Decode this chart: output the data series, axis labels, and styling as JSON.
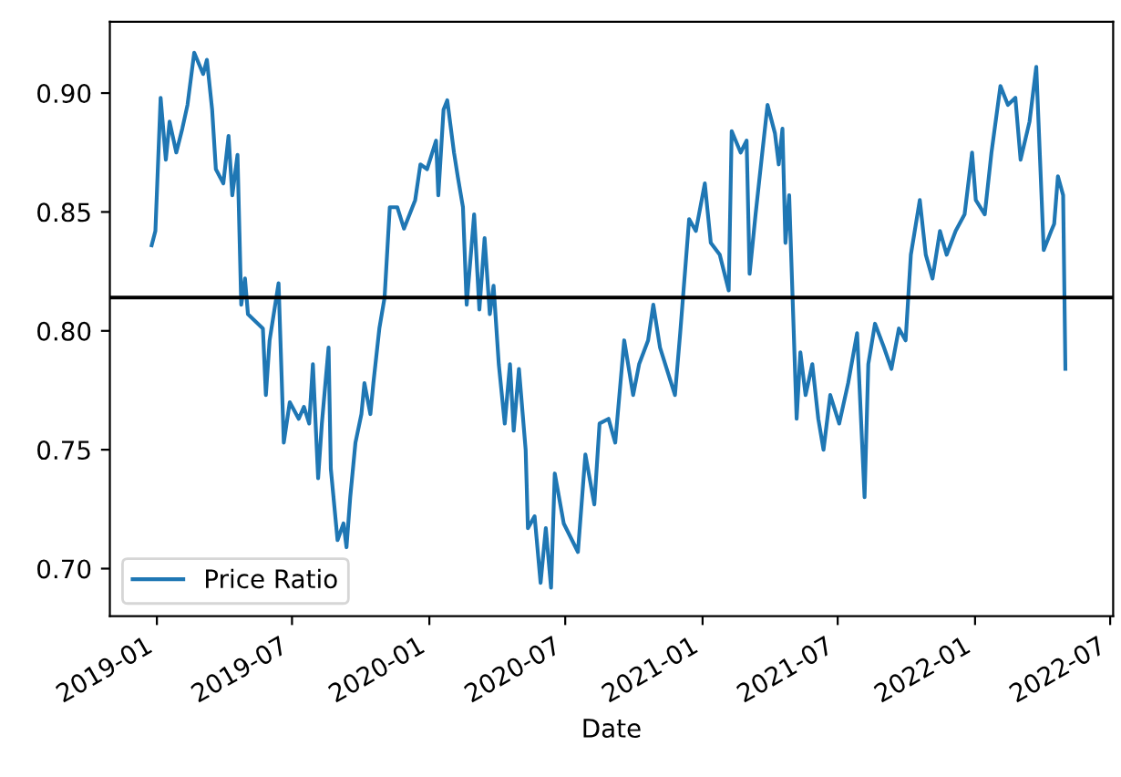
{
  "chart_data": {
    "type": "line",
    "xlabel": "Date",
    "x": [
      "2018-12-25",
      "2018-12-30",
      "2019-01-06",
      "2019-01-13",
      "2019-01-18",
      "2019-01-27",
      "2019-02-04",
      "2019-02-11",
      "2019-02-20",
      "2019-03-04",
      "2019-03-09",
      "2019-03-16",
      "2019-03-21",
      "2019-03-31",
      "2019-04-07",
      "2019-04-12",
      "2019-04-19",
      "2019-04-24",
      "2019-04-29",
      "2019-05-03",
      "2019-05-23",
      "2019-05-27",
      "2019-06-01",
      "2019-06-13",
      "2019-06-20",
      "2019-06-28",
      "2019-07-10",
      "2019-07-17",
      "2019-07-24",
      "2019-07-29",
      "2019-08-05",
      "2019-08-10",
      "2019-08-19",
      "2019-08-22",
      "2019-08-31",
      "2019-09-08",
      "2019-09-12",
      "2019-09-17",
      "2019-09-24",
      "2019-10-02",
      "2019-10-06",
      "2019-10-14",
      "2019-10-18",
      "2019-10-26",
      "2019-11-02",
      "2019-11-09",
      "2019-11-19",
      "2019-11-28",
      "2019-12-13",
      "2019-12-20",
      "2019-12-29",
      "2020-01-10",
      "2020-01-13",
      "2020-01-20",
      "2020-01-25",
      "2020-02-03",
      "2020-02-08",
      "2020-02-15",
      "2020-02-20",
      "2020-03-01",
      "2020-03-08",
      "2020-03-15",
      "2020-03-22",
      "2020-03-27",
      "2020-04-03",
      "2020-04-11",
      "2020-04-18",
      "2020-04-23",
      "2020-04-30",
      "2020-05-09",
      "2020-05-12",
      "2020-05-21",
      "2020-05-29",
      "2020-06-05",
      "2020-06-12",
      "2020-06-17",
      "2020-06-29",
      "2020-07-18",
      "2020-07-28",
      "2020-08-09",
      "2020-08-16",
      "2020-08-28",
      "2020-09-06",
      "2020-09-18",
      "2020-09-30",
      "2020-10-08",
      "2020-10-20",
      "2020-10-27",
      "2020-11-05",
      "2020-11-17",
      "2020-11-25",
      "2020-12-02",
      "2020-12-14",
      "2020-12-23",
      "2021-01-04",
      "2021-01-12",
      "2021-01-24",
      "2021-02-05",
      "2021-02-09",
      "2021-02-21",
      "2021-03-01",
      "2021-03-05",
      "2021-03-13",
      "2021-03-22",
      "2021-03-29",
      "2021-04-08",
      "2021-04-13",
      "2021-04-18",
      "2021-04-22",
      "2021-04-27",
      "2021-05-07",
      "2021-05-12",
      "2021-05-19",
      "2021-05-28",
      "2021-06-05",
      "2021-06-12",
      "2021-06-21",
      "2021-07-03",
      "2021-07-15",
      "2021-07-27",
      "2021-08-06",
      "2021-08-11",
      "2021-08-20",
      "2021-09-01",
      "2021-09-11",
      "2021-09-21",
      "2021-09-30",
      "2021-10-07",
      "2021-10-19",
      "2021-10-27",
      "2021-11-05",
      "2021-11-15",
      "2021-11-24",
      "2021-12-06",
      "2021-12-18",
      "2021-12-28",
      "2022-01-02",
      "2022-01-14",
      "2022-01-23",
      "2022-02-04",
      "2022-02-14",
      "2022-02-24",
      "2022-03-03",
      "2022-03-15",
      "2022-03-24",
      "2022-03-27",
      "2022-04-03",
      "2022-04-13",
      "2022-04-17",
      "2022-04-22",
      "2022-04-29",
      "2022-05-02"
    ],
    "series": [
      {
        "name": "Price Ratio",
        "color": "#1f77b4",
        "values": [
          0.836,
          0.842,
          0.898,
          0.872,
          0.888,
          0.875,
          0.885,
          0.895,
          0.917,
          0.908,
          0.914,
          0.893,
          0.868,
          0.862,
          0.882,
          0.857,
          0.874,
          0.811,
          0.822,
          0.807,
          0.801,
          0.773,
          0.796,
          0.82,
          0.753,
          0.77,
          0.763,
          0.768,
          0.761,
          0.786,
          0.738,
          0.761,
          0.793,
          0.742,
          0.712,
          0.719,
          0.709,
          0.73,
          0.753,
          0.765,
          0.778,
          0.765,
          0.778,
          0.801,
          0.814,
          0.852,
          0.852,
          0.843,
          0.855,
          0.87,
          0.868,
          0.88,
          0.857,
          0.893,
          0.897,
          0.875,
          0.865,
          0.852,
          0.811,
          0.849,
          0.809,
          0.839,
          0.807,
          0.819,
          0.786,
          0.761,
          0.786,
          0.758,
          0.784,
          0.75,
          0.717,
          0.722,
          0.694,
          0.717,
          0.692,
          0.74,
          0.719,
          0.707,
          0.748,
          0.727,
          0.761,
          0.763,
          0.753,
          0.796,
          0.773,
          0.786,
          0.796,
          0.811,
          0.793,
          0.781,
          0.773,
          0.799,
          0.847,
          0.842,
          0.862,
          0.837,
          0.832,
          0.817,
          0.884,
          0.875,
          0.88,
          0.824,
          0.849,
          0.875,
          0.895,
          0.883,
          0.87,
          0.885,
          0.837,
          0.857,
          0.763,
          0.791,
          0.773,
          0.786,
          0.763,
          0.75,
          0.773,
          0.761,
          0.778,
          0.799,
          0.73,
          0.786,
          0.803,
          0.793,
          0.784,
          0.801,
          0.796,
          0.832,
          0.855,
          0.832,
          0.822,
          0.842,
          0.832,
          0.842,
          0.849,
          0.875,
          0.855,
          0.849,
          0.875,
          0.903,
          0.895,
          0.898,
          0.872,
          0.888,
          0.911,
          0.888,
          0.834,
          0.842,
          0.845,
          0.865,
          0.857,
          0.784
        ]
      }
    ],
    "xlim": [
      "2018-10-30",
      "2022-07-05"
    ],
    "xticks": [
      "2019-01",
      "2019-07",
      "2020-01",
      "2020-07",
      "2021-01",
      "2021-07",
      "2022-01",
      "2022-07"
    ],
    "ylim": [
      0.68,
      0.93
    ],
    "yticks": [
      {
        "value": 0.7,
        "label": "0.70"
      },
      0.75,
      {
        "value": 0.8,
        "label": "0.80"
      },
      0.85,
      {
        "value": 0.9,
        "label": "0.90"
      }
    ],
    "ref_lines": [
      {
        "axis": "y",
        "value": 0.814,
        "color": "#000000"
      }
    ],
    "legend": "bottom left",
    "grid": false
  }
}
